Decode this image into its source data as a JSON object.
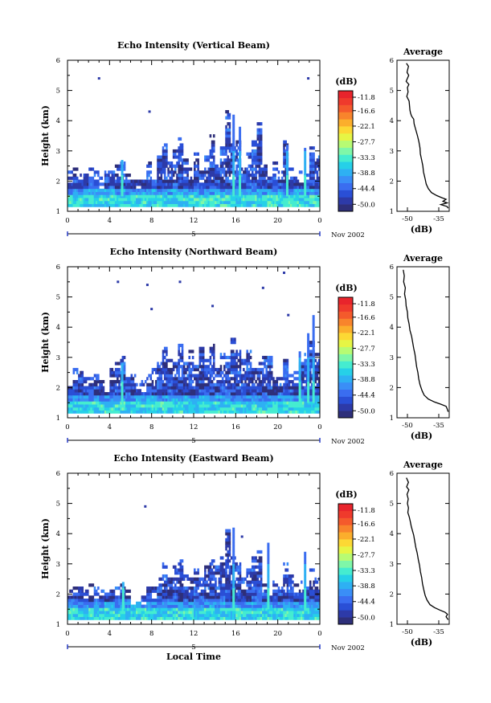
{
  "colors": {
    "palette": [
      "#2e2f7a",
      "#2d3aa8",
      "#2a4fd6",
      "#3a6df0",
      "#3a8ef7",
      "#2eb0f3",
      "#26d0e8",
      "#45ecd0",
      "#7ff7a8",
      "#b7fb73",
      "#e6f545",
      "#fcd834",
      "#fbae2c",
      "#f8842c",
      "#f45a2c",
      "#ef3a2c",
      "#e8242c"
    ],
    "line": "#000000",
    "background": "#ffffff"
  },
  "chart_data": [
    {
      "type": "heatmap",
      "title": "Echo Intensity (Vertical Beam)",
      "ylabel": "Height (km)",
      "xlabel": "",
      "x_ticks": [
        "0",
        "4",
        "8",
        "12",
        "16",
        "20",
        "0"
      ],
      "xlim": [
        0,
        24
      ],
      "y_ticks": [
        "1",
        "2",
        "3",
        "4",
        "5",
        "6"
      ],
      "ylim": [
        1,
        6
      ],
      "date_marker": "5",
      "date_label": "Nov 2002",
      "colorbar": {
        "unit": "(dB)",
        "ticks": [
          "-11.8",
          "-16.6",
          "-22.1",
          "-27.7",
          "-33.3",
          "-38.8",
          "-44.4",
          "-50.0"
        ],
        "range": [
          -52.5,
          -9.5
        ]
      },
      "echo_top_km": [
        2.3,
        2.4,
        2.3,
        2.2,
        2.4,
        2.3,
        2.1,
        2.3,
        2.4,
        2.5,
        2.6,
        2.2,
        2.1,
        2.0,
        2.1,
        2.6,
        2.3,
        2.8,
        3.2,
        2.6,
        3.0,
        3.4,
        2.7,
        2.5,
        2.9,
        2.3,
        2.8,
        3.6,
        2.8,
        3.1,
        4.3,
        3.2,
        3.3,
        2.5,
        2.9,
        3.3,
        3.9,
        2.5,
        2.2,
        2.6,
        2.4,
        3.3,
        2.5,
        2.4,
        2.3,
        2.3,
        3.1,
        2.8
      ],
      "spikes": [
        [
          5.2,
          2.7
        ],
        [
          15.8,
          4.2
        ],
        [
          16.4,
          3.8
        ],
        [
          20.9,
          3.2
        ],
        [
          22.6,
          3.1
        ]
      ],
      "isolated_echoes": [
        [
          3.0,
          5.4
        ],
        [
          7.8,
          4.3
        ],
        [
          22.9,
          5.4
        ]
      ],
      "profile": {
        "title": "Average",
        "xlabel": "(dB)",
        "x_ticks": [
          "-50",
          "-35"
        ],
        "xlim": [
          -55,
          -30
        ],
        "ylim": [
          1,
          6
        ],
        "y_ticks": [
          "1",
          "2",
          "3",
          "4",
          "5",
          "6"
        ],
        "points": [
          [
            -50.5,
            5.9
          ],
          [
            -49.5,
            5.8
          ],
          [
            -50.2,
            5.6
          ],
          [
            -49.4,
            5.5
          ],
          [
            -50.6,
            5.3
          ],
          [
            -49.3,
            5.2
          ],
          [
            -50.0,
            5.1
          ],
          [
            -49.7,
            4.95
          ],
          [
            -50.3,
            4.8
          ],
          [
            -49.2,
            4.65
          ],
          [
            -49.0,
            4.5
          ],
          [
            -48.8,
            4.35
          ],
          [
            -48.5,
            4.25
          ],
          [
            -48.0,
            4.15
          ],
          [
            -47.0,
            4.05
          ],
          [
            -46.8,
            3.9
          ],
          [
            -46.0,
            3.7
          ],
          [
            -45.2,
            3.5
          ],
          [
            -44.5,
            3.3
          ],
          [
            -44.0,
            3.1
          ],
          [
            -43.8,
            2.9
          ],
          [
            -43.2,
            2.7
          ],
          [
            -42.6,
            2.5
          ],
          [
            -42.3,
            2.3
          ],
          [
            -41.6,
            2.1
          ],
          [
            -41.0,
            1.9
          ],
          [
            -40.0,
            1.75
          ],
          [
            -38.5,
            1.62
          ],
          [
            -36.0,
            1.52
          ],
          [
            -33.5,
            1.45
          ],
          [
            -31.5,
            1.4
          ],
          [
            -33.0,
            1.33
          ],
          [
            -31.0,
            1.28
          ],
          [
            -34.0,
            1.22
          ],
          [
            -31.0,
            1.16
          ],
          [
            -30.5,
            1.1
          ]
        ]
      }
    },
    {
      "type": "heatmap",
      "title": "Echo Intensity (Northward Beam)",
      "ylabel": "Height (km)",
      "xlabel": "",
      "x_ticks": [
        "0",
        "4",
        "8",
        "12",
        "16",
        "20",
        "0"
      ],
      "xlim": [
        0,
        24
      ],
      "y_ticks": [
        "1",
        "2",
        "3",
        "4",
        "5",
        "6"
      ],
      "ylim": [
        1,
        6
      ],
      "date_marker": "5",
      "date_label": "Nov 2002",
      "colorbar": {
        "unit": "(dB)",
        "ticks": [
          "-11.8",
          "-16.6",
          "-22.1",
          "-27.7",
          "-33.3",
          "-38.8",
          "-44.4",
          "-50.0"
        ],
        "range": [
          -52.5,
          -9.5
        ]
      },
      "echo_top_km": [
        2.4,
        2.6,
        2.5,
        2.3,
        2.5,
        2.7,
        2.4,
        2.2,
        2.6,
        2.8,
        3.0,
        2.5,
        2.4,
        2.3,
        2.2,
        2.4,
        2.6,
        2.8,
        3.3,
        3.0,
        2.8,
        3.5,
        2.8,
        3.2,
        2.7,
        3.3,
        2.9,
        3.4,
        2.6,
        3.1,
        3.0,
        3.6,
        3.2,
        2.9,
        3.4,
        2.6,
        2.8,
        3.1,
        3.0,
        2.7,
        2.4,
        2.9,
        2.6,
        2.5,
        2.9,
        3.3,
        3.6,
        3.1
      ],
      "spikes": [
        [
          5.2,
          2.8
        ],
        [
          22.1,
          3.2
        ],
        [
          22.9,
          3.8
        ],
        [
          23.4,
          4.4
        ]
      ],
      "isolated_echoes": [
        [
          4.8,
          5.5
        ],
        [
          7.6,
          5.4
        ],
        [
          10.7,
          5.5
        ],
        [
          13.8,
          4.7
        ],
        [
          18.6,
          5.3
        ],
        [
          20.6,
          5.8
        ],
        [
          21.0,
          4.4
        ],
        [
          8.0,
          4.6
        ]
      ],
      "profile": {
        "title": "Average",
        "xlabel": "(dB)",
        "x_ticks": [
          "-50",
          "-35"
        ],
        "xlim": [
          -55,
          -30
        ],
        "ylim": [
          1,
          6
        ],
        "y_ticks": [
          "1",
          "2",
          "3",
          "4",
          "5",
          "6"
        ],
        "points": [
          [
            -52.0,
            5.9
          ],
          [
            -51.5,
            5.7
          ],
          [
            -51.8,
            5.5
          ],
          [
            -51.0,
            5.3
          ],
          [
            -51.4,
            5.1
          ],
          [
            -50.8,
            4.9
          ],
          [
            -50.6,
            4.7
          ],
          [
            -50.0,
            4.5
          ],
          [
            -49.8,
            4.3
          ],
          [
            -49.2,
            4.1
          ],
          [
            -48.8,
            3.9
          ],
          [
            -48.0,
            3.7
          ],
          [
            -47.5,
            3.5
          ],
          [
            -47.0,
            3.3
          ],
          [
            -46.4,
            3.1
          ],
          [
            -46.0,
            2.9
          ],
          [
            -45.6,
            2.7
          ],
          [
            -45.0,
            2.5
          ],
          [
            -44.6,
            2.3
          ],
          [
            -44.0,
            2.1
          ],
          [
            -43.0,
            1.9
          ],
          [
            -42.0,
            1.75
          ],
          [
            -40.0,
            1.62
          ],
          [
            -37.0,
            1.52
          ],
          [
            -34.0,
            1.45
          ],
          [
            -31.5,
            1.38
          ],
          [
            -31.0,
            1.3
          ],
          [
            -30.5,
            1.2
          ]
        ]
      }
    },
    {
      "type": "heatmap",
      "title": "Echo Intensity (Eastward Beam)",
      "ylabel": "Height (km)",
      "xlabel": "Local Time",
      "x_ticks": [
        "0",
        "4",
        "8",
        "12",
        "16",
        "20",
        "0"
      ],
      "xlim": [
        0,
        24
      ],
      "y_ticks": [
        "1",
        "2",
        "3",
        "4",
        "5",
        "6"
      ],
      "ylim": [
        1,
        6
      ],
      "date_marker": "5",
      "date_label": "Nov 2002",
      "colorbar": {
        "unit": "(dB)",
        "ticks": [
          "-11.8",
          "-16.6",
          "-22.1",
          "-27.7",
          "-33.3",
          "-38.8",
          "-44.4",
          "-50.0"
        ],
        "range": [
          -52.5,
          -9.5
        ]
      },
      "echo_top_km": [
        2.1,
        2.3,
        2.2,
        2.1,
        2.3,
        2.2,
        2.1,
        2.0,
        2.1,
        2.2,
        2.4,
        2.1,
        2.0,
        1.9,
        2.0,
        2.3,
        2.2,
        2.6,
        3.0,
        2.5,
        2.9,
        3.2,
        2.6,
        2.5,
        2.9,
        2.5,
        3.0,
        3.4,
        2.9,
        3.2,
        4.1,
        3.3,
        3.0,
        2.5,
        2.8,
        3.2,
        3.5,
        2.4,
        2.3,
        2.5,
        2.2,
        3.0,
        2.6,
        2.4,
        2.4,
        2.2,
        2.8,
        2.5
      ],
      "spikes": [
        [
          5.3,
          2.4
        ],
        [
          15.8,
          4.2
        ],
        [
          19.1,
          3.7
        ],
        [
          22.6,
          3.4
        ]
      ],
      "isolated_echoes": [
        [
          7.4,
          4.9
        ],
        [
          16.6,
          3.9
        ]
      ],
      "profile": {
        "title": "Average",
        "xlabel": "(dB)",
        "x_ticks": [
          "-50",
          "-35"
        ],
        "xlim": [
          -55,
          -30
        ],
        "ylim": [
          1,
          6
        ],
        "y_ticks": [
          "1",
          "2",
          "3",
          "4",
          "5",
          "6"
        ],
        "points": [
          [
            -50.5,
            5.85
          ],
          [
            -49.5,
            5.7
          ],
          [
            -50.4,
            5.55
          ],
          [
            -49.3,
            5.45
          ],
          [
            -50.2,
            5.3
          ],
          [
            -49.6,
            5.15
          ],
          [
            -50.0,
            5.0
          ],
          [
            -49.5,
            4.85
          ],
          [
            -49.8,
            4.7
          ],
          [
            -49.1,
            4.55
          ],
          [
            -48.6,
            4.4
          ],
          [
            -48.2,
            4.25
          ],
          [
            -47.6,
            4.1
          ],
          [
            -47.0,
            3.95
          ],
          [
            -46.5,
            3.75
          ],
          [
            -46.0,
            3.55
          ],
          [
            -45.3,
            3.35
          ],
          [
            -44.8,
            3.15
          ],
          [
            -44.2,
            2.95
          ],
          [
            -43.8,
            2.75
          ],
          [
            -43.2,
            2.55
          ],
          [
            -42.8,
            2.35
          ],
          [
            -42.2,
            2.15
          ],
          [
            -41.5,
            1.95
          ],
          [
            -40.6,
            1.8
          ],
          [
            -39.2,
            1.65
          ],
          [
            -37.0,
            1.55
          ],
          [
            -34.5,
            1.47
          ],
          [
            -32.0,
            1.4
          ],
          [
            -30.8,
            1.33
          ],
          [
            -31.5,
            1.25
          ],
          [
            -30.5,
            1.15
          ]
        ]
      }
    }
  ]
}
